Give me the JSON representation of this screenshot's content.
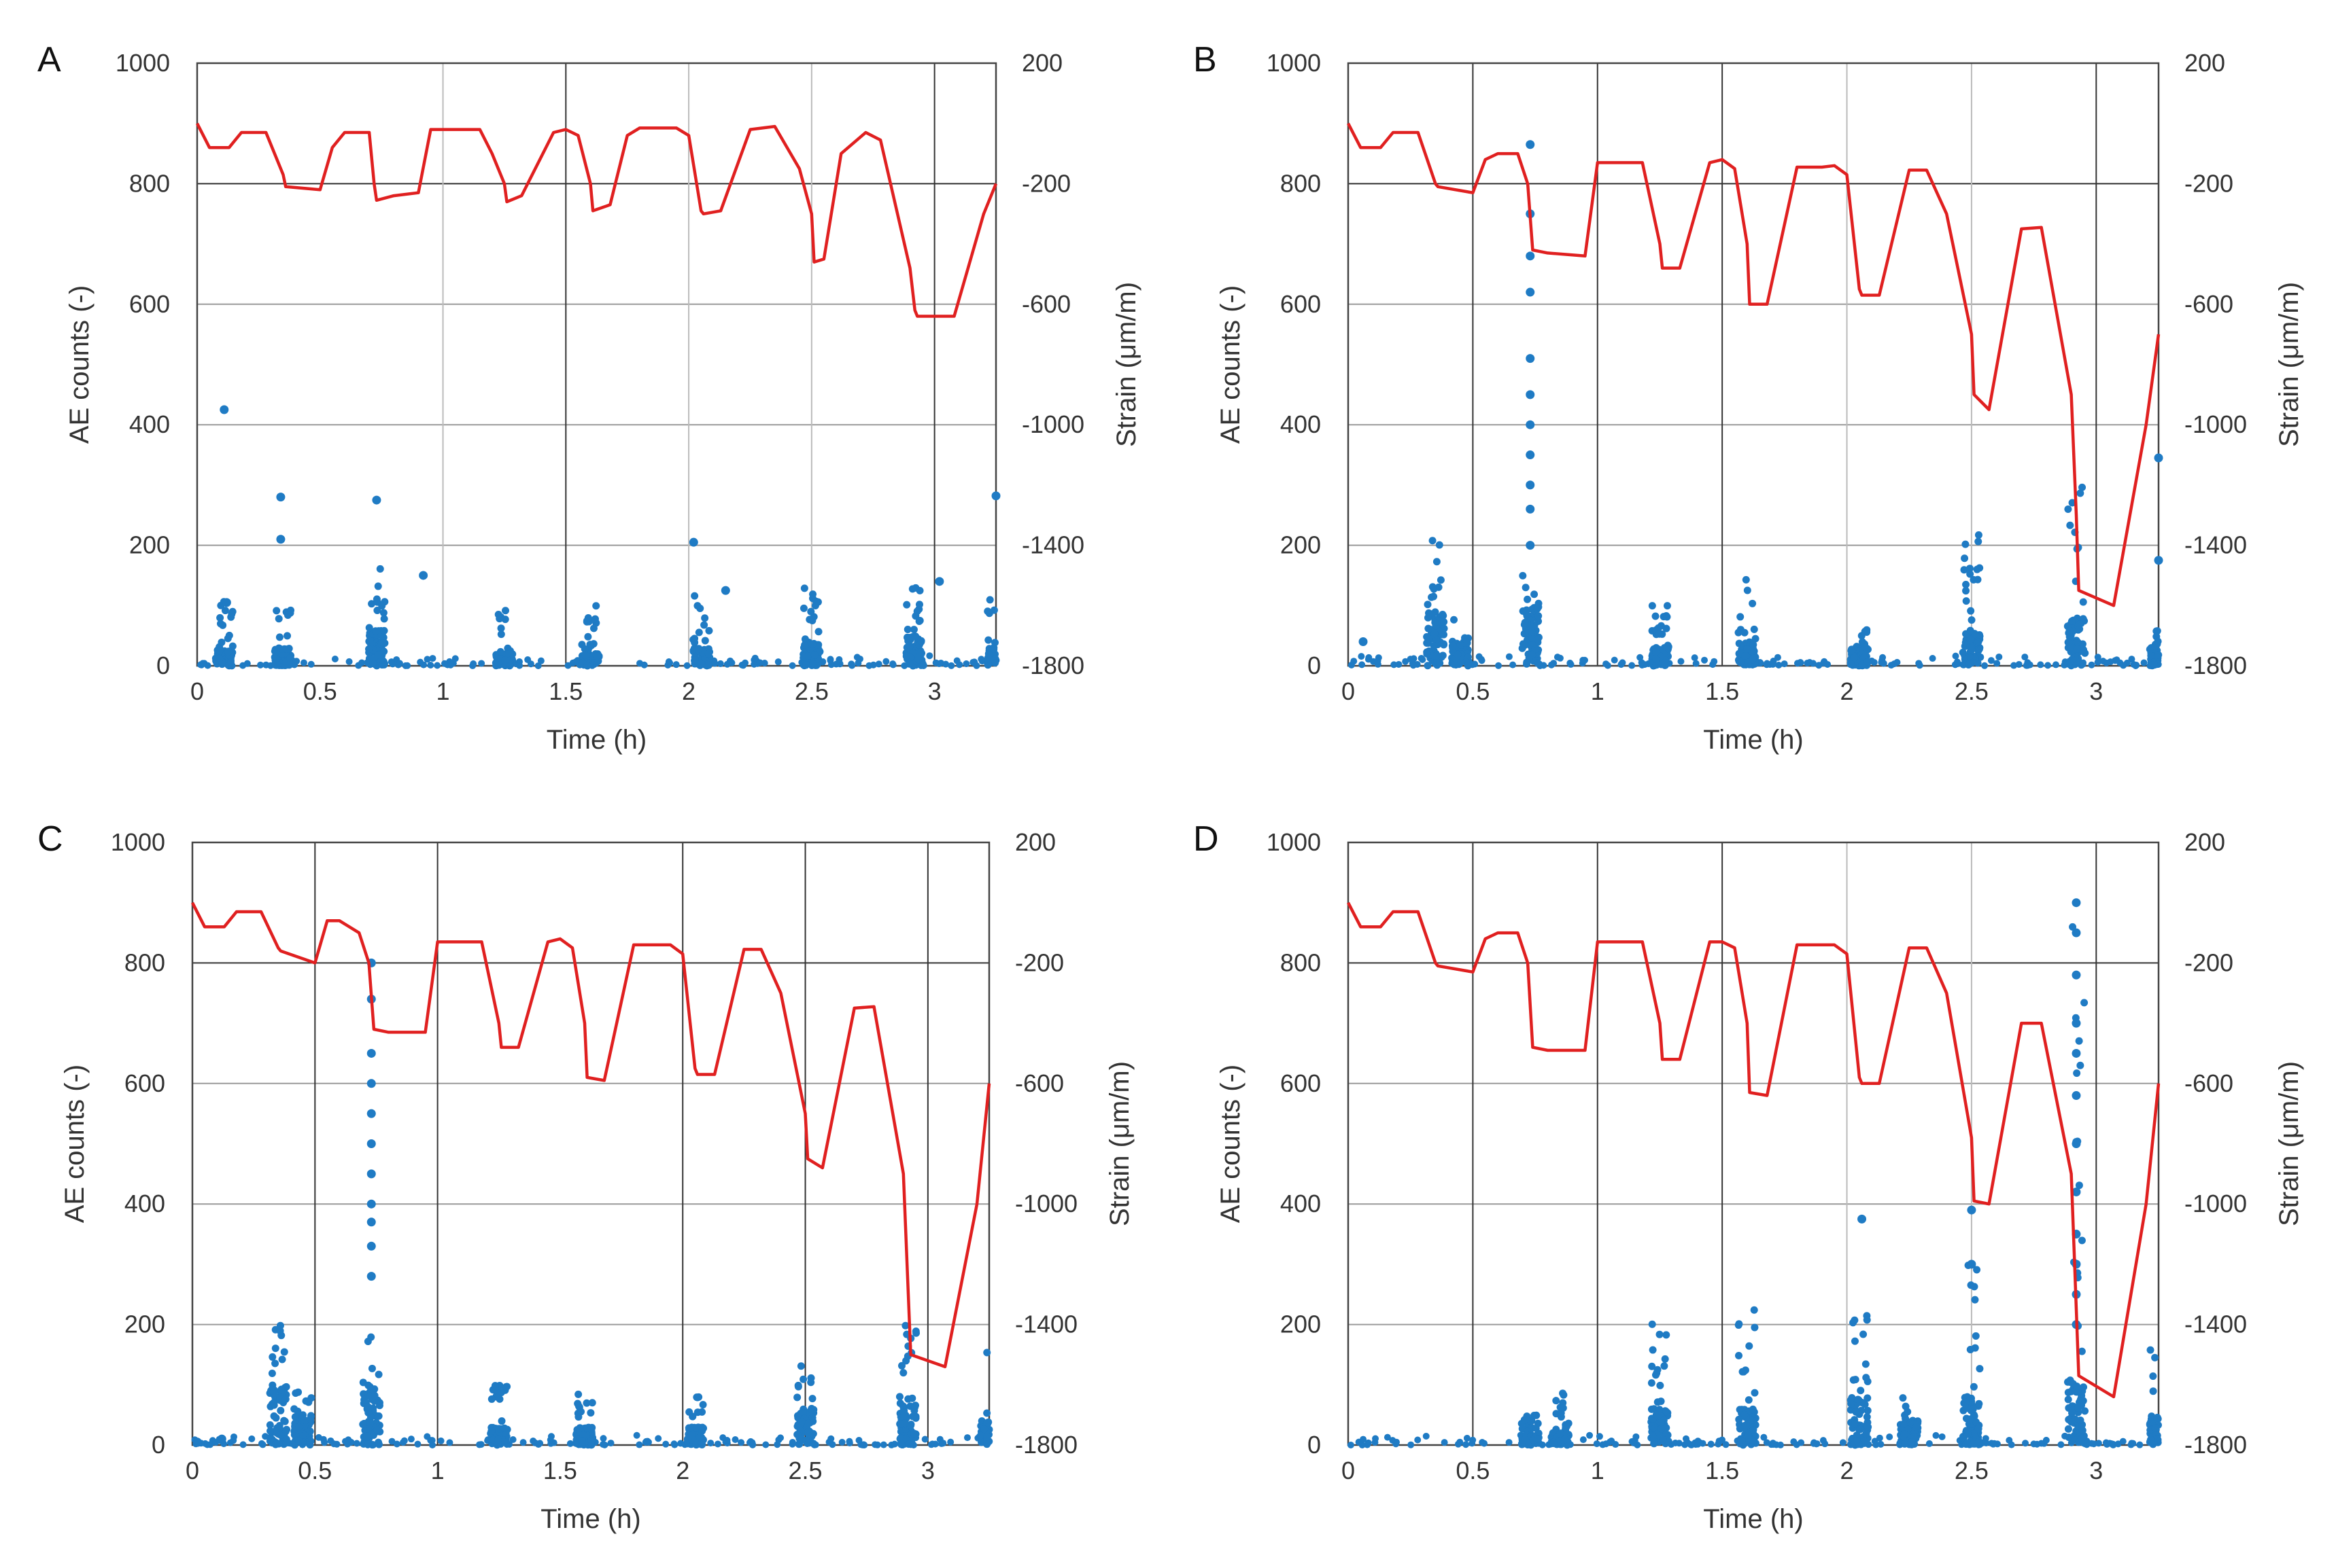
{
  "chart_data": [
    {
      "type": "scatter+line",
      "panel": "A",
      "xlabel": "Time (h)",
      "ylabel_left": "AE counts (-)",
      "ylabel_right": "Strain (μm/m)",
      "xlim": [
        0,
        3.25
      ],
      "ylim_left": [
        0,
        1000
      ],
      "ylim_right": [
        -1800,
        200
      ],
      "xticks": [
        "0",
        "0.5",
        "1",
        "1.5",
        "2",
        "2.5",
        "3"
      ],
      "yticks_left": [
        "0",
        "200",
        "400",
        "600",
        "800",
        "1000"
      ],
      "yticks_right": [
        "-1800",
        "-1400",
        "-1000",
        "-600",
        "-200",
        "200"
      ],
      "vlines": [
        {
          "x": 1.0,
          "color": "#bbbbbb"
        },
        {
          "x": 1.5,
          "color": "#333333"
        },
        {
          "x": 2.0,
          "color": "#bbbbbb"
        },
        {
          "x": 2.5,
          "color": "#bbbbbb"
        },
        {
          "x": 3.0,
          "color": "#333333"
        }
      ],
      "strain_series": {
        "name": "Strain",
        "color": "#e02020",
        "x": [
          0,
          0.05,
          0.13,
          0.18,
          0.28,
          0.35,
          0.36,
          0.5,
          0.55,
          0.6,
          0.7,
          0.72,
          0.73,
          0.8,
          0.9,
          0.95,
          1.0,
          1.15,
          1.2,
          1.25,
          1.26,
          1.32,
          1.45,
          1.5,
          1.55,
          1.6,
          1.61,
          1.68,
          1.75,
          1.8,
          1.95,
          2.0,
          2.05,
          2.06,
          2.13,
          2.25,
          2.35,
          2.45,
          2.5,
          2.51,
          2.55,
          2.62,
          2.72,
          2.78,
          2.9,
          2.92,
          2.93,
          3.08,
          3.2,
          3.25
        ],
        "y": [
          0,
          -80,
          -80,
          -30,
          -30,
          -170,
          -210,
          -220,
          -80,
          -30,
          -30,
          -200,
          -255,
          -240,
          -230,
          -20,
          -20,
          -20,
          -100,
          -200,
          -260,
          -240,
          -30,
          -20,
          -40,
          -200,
          -290,
          -270,
          -40,
          -15,
          -15,
          -40,
          -290,
          -300,
          -290,
          -20,
          -10,
          -150,
          -300,
          -460,
          -450,
          -100,
          -30,
          -55,
          -480,
          -620,
          -640,
          -640,
          -300,
          -200
        ]
      },
      "ae_bursts": [
        {
          "t": 0.11,
          "max": 110,
          "dense": 25
        },
        {
          "t": 0.35,
          "max": 100,
          "dense": 30
        },
        {
          "t": 0.73,
          "max": 180,
          "dense": 60
        },
        {
          "t": 1.25,
          "max": 100,
          "dense": 20
        },
        {
          "t": 1.6,
          "max": 100,
          "dense": 20
        },
        {
          "t": 2.05,
          "max": 120,
          "dense": 30
        },
        {
          "t": 2.5,
          "max": 130,
          "dense": 40
        },
        {
          "t": 2.92,
          "max": 130,
          "dense": 50
        },
        {
          "t": 3.25,
          "max": 120,
          "dense": 30
        }
      ],
      "ae_outliers": [
        [
          0.11,
          425
        ],
        [
          0.34,
          280
        ],
        [
          0.34,
          210
        ],
        [
          0.73,
          275
        ],
        [
          0.92,
          150
        ],
        [
          2.02,
          205
        ],
        [
          2.15,
          125
        ],
        [
          3.25,
          282
        ],
        [
          3.02,
          140
        ],
        [
          0.12,
          105
        ]
      ]
    },
    {
      "type": "scatter+line",
      "panel": "B",
      "xlabel": "Time (h)",
      "ylabel_left": "AE counts (-)",
      "ylabel_right": "Strain (μm/m)",
      "xlim": [
        0,
        3.25
      ],
      "ylim_left": [
        0,
        1000
      ],
      "ylim_right": [
        -1800,
        200
      ],
      "xticks": [
        "0",
        "0.5",
        "1",
        "1.5",
        "2",
        "2.5",
        "3"
      ],
      "yticks_left": [
        "0",
        "200",
        "400",
        "600",
        "800",
        "1000"
      ],
      "yticks_right": [
        "-1800",
        "-1400",
        "-1000",
        "-600",
        "-200",
        "200"
      ],
      "vlines": [
        {
          "x": 0.5,
          "color": "#333333"
        },
        {
          "x": 1.0,
          "color": "#333333"
        },
        {
          "x": 1.5,
          "color": "#333333"
        },
        {
          "x": 2.0,
          "color": "#bbbbbb"
        },
        {
          "x": 2.5,
          "color": "#bbbbbb"
        },
        {
          "x": 3.0,
          "color": "#333333"
        }
      ],
      "strain_series": {
        "name": "Strain",
        "color": "#e02020",
        "x": [
          0,
          0.05,
          0.13,
          0.18,
          0.28,
          0.35,
          0.36,
          0.5,
          0.55,
          0.6,
          0.68,
          0.72,
          0.74,
          0.8,
          0.95,
          1.0,
          1.18,
          1.25,
          1.26,
          1.33,
          1.45,
          1.5,
          1.55,
          1.6,
          1.61,
          1.68,
          1.8,
          1.88,
          1.9,
          1.95,
          2.0,
          2.05,
          2.06,
          2.13,
          2.25,
          2.32,
          2.4,
          2.5,
          2.51,
          2.57,
          2.7,
          2.78,
          2.9,
          2.92,
          2.93,
          3.07,
          3.2,
          3.25
        ],
        "y": [
          0,
          -80,
          -80,
          -30,
          -30,
          -200,
          -210,
          -230,
          -120,
          -100,
          -100,
          -200,
          -420,
          -430,
          -440,
          -130,
          -130,
          -400,
          -480,
          -480,
          -130,
          -120,
          -150,
          -400,
          -600,
          -600,
          -145,
          -145,
          -145,
          -140,
          -170,
          -550,
          -570,
          -570,
          -155,
          -155,
          -300,
          -700,
          -900,
          -950,
          -350,
          -345,
          -900,
          -1300,
          -1550,
          -1600,
          -1000,
          -700
        ]
      },
      "ae_bursts": [
        {
          "t": 0.35,
          "max": 220,
          "dense": 90
        },
        {
          "t": 0.45,
          "max": 90,
          "dense": 40
        },
        {
          "t": 0.73,
          "max": 150,
          "dense": 100
        },
        {
          "t": 1.25,
          "max": 100,
          "dense": 30
        },
        {
          "t": 1.6,
          "max": 150,
          "dense": 40
        },
        {
          "t": 2.05,
          "max": 60,
          "dense": 30
        },
        {
          "t": 2.5,
          "max": 220,
          "dense": 60
        },
        {
          "t": 2.92,
          "max": 350,
          "dense": 80
        },
        {
          "t": 3.25,
          "max": 60,
          "dense": 30
        }
      ],
      "ae_outliers": [
        [
          0.73,
          865
        ],
        [
          0.73,
          750
        ],
        [
          0.73,
          680
        ],
        [
          0.73,
          620
        ],
        [
          0.73,
          510
        ],
        [
          0.73,
          450
        ],
        [
          0.73,
          400
        ],
        [
          0.73,
          350
        ],
        [
          0.73,
          300
        ],
        [
          0.73,
          260
        ],
        [
          0.73,
          200
        ],
        [
          3.25,
          345
        ],
        [
          3.25,
          175
        ],
        [
          0.06,
          40
        ]
      ]
    },
    {
      "type": "scatter+line",
      "panel": "C",
      "xlabel": "Time (h)",
      "ylabel_left": "AE counts (-)",
      "ylabel_right": "Strain (μm/m)",
      "xlim": [
        0,
        3.25
      ],
      "ylim_left": [
        0,
        1000
      ],
      "ylim_right": [
        -1800,
        200
      ],
      "xticks": [
        "0",
        "0.5",
        "1",
        "1.5",
        "2",
        "2.5",
        "3"
      ],
      "yticks_left": [
        "0",
        "200",
        "400",
        "600",
        "800",
        "1000"
      ],
      "yticks_right": [
        "-1800",
        "-1400",
        "-1000",
        "-600",
        "-200",
        "200"
      ],
      "vlines": [
        {
          "x": 0.5,
          "color": "#333333"
        },
        {
          "x": 1.0,
          "color": "#333333"
        },
        {
          "x": 2.0,
          "color": "#333333"
        },
        {
          "x": 2.5,
          "color": "#333333"
        },
        {
          "x": 3.0,
          "color": "#333333"
        }
      ],
      "strain_series": {
        "name": "Strain",
        "color": "#e02020",
        "x": [
          0,
          0.05,
          0.13,
          0.18,
          0.28,
          0.35,
          0.36,
          0.5,
          0.55,
          0.6,
          0.68,
          0.72,
          0.74,
          0.8,
          0.95,
          1.0,
          1.18,
          1.25,
          1.26,
          1.33,
          1.45,
          1.5,
          1.55,
          1.6,
          1.61,
          1.68,
          1.8,
          1.88,
          1.95,
          2.0,
          2.05,
          2.06,
          2.13,
          2.25,
          2.32,
          2.4,
          2.5,
          2.51,
          2.57,
          2.7,
          2.78,
          2.9,
          2.92,
          2.93,
          3.07,
          3.2,
          3.25
        ],
        "y": [
          0,
          -80,
          -80,
          -30,
          -30,
          -150,
          -160,
          -200,
          -60,
          -60,
          -100,
          -200,
          -420,
          -430,
          -430,
          -130,
          -130,
          -400,
          -480,
          -480,
          -130,
          -120,
          -150,
          -400,
          -580,
          -590,
          -140,
          -140,
          -140,
          -170,
          -550,
          -570,
          -570,
          -155,
          -155,
          -300,
          -700,
          -850,
          -880,
          -350,
          -345,
          -900,
          -1300,
          -1500,
          -1540,
          -1000,
          -600
        ]
      },
      "ae_bursts": [
        {
          "t": 0.35,
          "max": 240,
          "dense": 100
        },
        {
          "t": 0.45,
          "max": 90,
          "dense": 50
        },
        {
          "t": 0.73,
          "max": 200,
          "dense": 100
        },
        {
          "t": 1.25,
          "max": 100,
          "dense": 30
        },
        {
          "t": 1.6,
          "max": 90,
          "dense": 30
        },
        {
          "t": 2.05,
          "max": 80,
          "dense": 30
        },
        {
          "t": 2.5,
          "max": 150,
          "dense": 60
        },
        {
          "t": 2.92,
          "max": 220,
          "dense": 70
        },
        {
          "t": 3.25,
          "max": 160,
          "dense": 40
        }
      ],
      "ae_outliers": [
        [
          0.73,
          800
        ],
        [
          0.73,
          740
        ],
        [
          0.73,
          650
        ],
        [
          0.73,
          600
        ],
        [
          0.73,
          550
        ],
        [
          0.73,
          500
        ],
        [
          0.73,
          450
        ],
        [
          0.73,
          400
        ],
        [
          0.73,
          370
        ],
        [
          0.73,
          330
        ],
        [
          0.73,
          280
        ],
        [
          0.02,
          5
        ],
        [
          0.12,
          10
        ]
      ]
    },
    {
      "type": "scatter+line",
      "panel": "D",
      "xlabel": "Time (h)",
      "ylabel_left": "AE counts (-)",
      "ylabel_right": "Strain (μm/m)",
      "xlim": [
        0,
        3.25
      ],
      "ylim_left": [
        0,
        1000
      ],
      "ylim_right": [
        -1800,
        200
      ],
      "xticks": [
        "0",
        "0.5",
        "1",
        "1.5",
        "2",
        "2.5",
        "3"
      ],
      "yticks_left": [
        "0",
        "200",
        "400",
        "600",
        "800",
        "1000"
      ],
      "yticks_right": [
        "-1800",
        "-1400",
        "-1000",
        "-600",
        "-200",
        "200"
      ],
      "vlines": [
        {
          "x": 0.5,
          "color": "#333333"
        },
        {
          "x": 1.0,
          "color": "#333333"
        },
        {
          "x": 1.5,
          "color": "#333333"
        },
        {
          "x": 2.0,
          "color": "#bbbbbb"
        },
        {
          "x": 2.5,
          "color": "#bbbbbb"
        },
        {
          "x": 3.0,
          "color": "#333333"
        }
      ],
      "strain_series": {
        "name": "Strain",
        "color": "#e02020",
        "x": [
          0,
          0.05,
          0.13,
          0.18,
          0.28,
          0.35,
          0.36,
          0.5,
          0.55,
          0.6,
          0.68,
          0.72,
          0.74,
          0.8,
          0.95,
          1.0,
          1.18,
          1.25,
          1.26,
          1.33,
          1.45,
          1.5,
          1.55,
          1.6,
          1.61,
          1.68,
          1.8,
          1.88,
          1.95,
          2.0,
          2.05,
          2.06,
          2.13,
          2.25,
          2.32,
          2.4,
          2.5,
          2.51,
          2.57,
          2.7,
          2.78,
          2.9,
          2.92,
          2.93,
          3.07,
          3.2,
          3.25
        ],
        "y": [
          0,
          -80,
          -80,
          -30,
          -30,
          -200,
          -210,
          -230,
          -120,
          -100,
          -100,
          -200,
          -480,
          -490,
          -490,
          -130,
          -130,
          -400,
          -520,
          -520,
          -130,
          -130,
          -150,
          -400,
          -630,
          -640,
          -140,
          -140,
          -140,
          -170,
          -580,
          -600,
          -600,
          -150,
          -150,
          -300,
          -780,
          -990,
          -1000,
          -400,
          -400,
          -900,
          -1350,
          -1570,
          -1640,
          -1000,
          -600
        ]
      },
      "ae_bursts": [
        {
          "t": 0.73,
          "max": 50,
          "dense": 20
        },
        {
          "t": 0.85,
          "max": 90,
          "dense": 20
        },
        {
          "t": 1.25,
          "max": 205,
          "dense": 60
        },
        {
          "t": 1.6,
          "max": 230,
          "dense": 60
        },
        {
          "t": 2.05,
          "max": 220,
          "dense": 80
        },
        {
          "t": 2.25,
          "max": 80,
          "dense": 40
        },
        {
          "t": 2.5,
          "max": 300,
          "dense": 80
        },
        {
          "t": 2.92,
          "max": 940,
          "dense": 110
        },
        {
          "t": 3.25,
          "max": 190,
          "dense": 50
        }
      ],
      "ae_outliers": [
        [
          2.06,
          375
        ],
        [
          2.5,
          390
        ],
        [
          2.5,
          300
        ],
        [
          2.92,
          900
        ],
        [
          2.92,
          850
        ],
        [
          2.92,
          780
        ],
        [
          2.92,
          700
        ],
        [
          2.92,
          650
        ],
        [
          2.92,
          580
        ],
        [
          2.92,
          500
        ],
        [
          2.92,
          420
        ],
        [
          2.92,
          350
        ],
        [
          2.92,
          300
        ],
        [
          2.92,
          250
        ],
        [
          2.92,
          200
        ]
      ]
    }
  ]
}
